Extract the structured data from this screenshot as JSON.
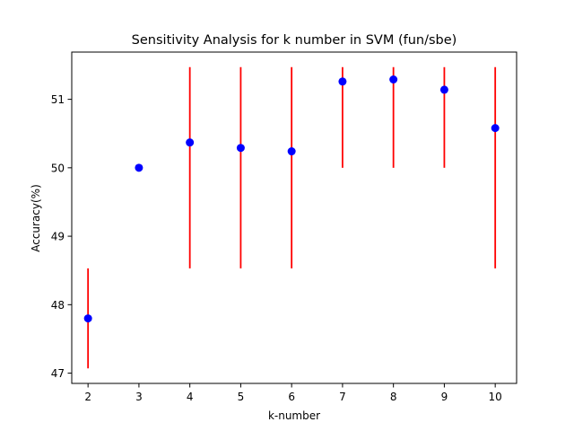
{
  "chart_data": {
    "type": "scatter",
    "title": "Sensitivity Analysis for k number in SVM (fun/sbe)",
    "xlabel": "k-number",
    "ylabel": "Accuracy(%)",
    "x": [
      2,
      3,
      4,
      5,
      6,
      7,
      8,
      9,
      10
    ],
    "y": [
      47.8,
      50.0,
      50.37,
      50.29,
      50.24,
      51.26,
      51.29,
      51.14,
      50.58
    ],
    "error_low": [
      47.07,
      50.0,
      48.53,
      48.53,
      48.53,
      50.0,
      50.0,
      50.0,
      48.53
    ],
    "error_high": [
      48.53,
      50.0,
      51.47,
      51.47,
      51.47,
      51.47,
      51.47,
      51.47,
      51.47
    ],
    "xticks": [
      "2",
      "3",
      "4",
      "5",
      "6",
      "7",
      "8",
      "9",
      "10"
    ],
    "yticks": [
      "47",
      "48",
      "49",
      "50",
      "51"
    ],
    "xlim": [
      1.68,
      10.42
    ],
    "ylim": [
      46.85,
      51.69
    ],
    "grid": false,
    "colors": {
      "marker": "#0000ff",
      "errorbar": "#ff0000"
    }
  }
}
